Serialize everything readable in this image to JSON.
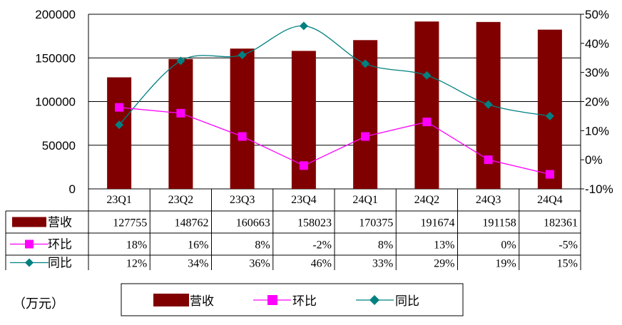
{
  "chart_data": {
    "type": "bar",
    "categories": [
      "23Q1",
      "23Q2",
      "23Q3",
      "23Q4",
      "24Q1",
      "24Q2",
      "24Q3",
      "24Q4"
    ],
    "series": [
      {
        "name": "营收",
        "type": "bar",
        "axis": "left",
        "color": "#800000",
        "values": [
          127755,
          148762,
          160663,
          158023,
          170375,
          191674,
          191158,
          182361
        ],
        "labels": [
          "127755",
          "148762",
          "160663",
          "158023",
          "170375",
          "191674",
          "191158",
          "182361"
        ]
      },
      {
        "name": "环比",
        "type": "line",
        "axis": "right",
        "color": "#FF00FF",
        "marker": "square",
        "values": [
          18,
          16,
          8,
          -2,
          8,
          13,
          0,
          -5
        ],
        "labels": [
          "18%",
          "16%",
          "8%",
          "-2%",
          "8%",
          "13%",
          "0%",
          "-5%"
        ]
      },
      {
        "name": "同比",
        "type": "line",
        "axis": "right",
        "color": "#008080",
        "marker": "diamond",
        "smooth": true,
        "values": [
          12,
          34,
          36,
          46,
          33,
          29,
          19,
          15
        ],
        "labels": [
          "12%",
          "34%",
          "36%",
          "46%",
          "33%",
          "29%",
          "19%",
          "15%"
        ]
      }
    ],
    "ylim": [
      0,
      200000
    ],
    "y_ticks": [
      "200000",
      "150000",
      "100000",
      "50000",
      "0"
    ],
    "y2lim": [
      -10,
      50
    ],
    "y2_ticks": [
      "50%",
      "40%",
      "30%",
      "20%",
      "10%",
      "0%",
      "-10%"
    ],
    "grid": true,
    "legend": "bottom",
    "data_table": true
  },
  "unit_label": "（万元）"
}
